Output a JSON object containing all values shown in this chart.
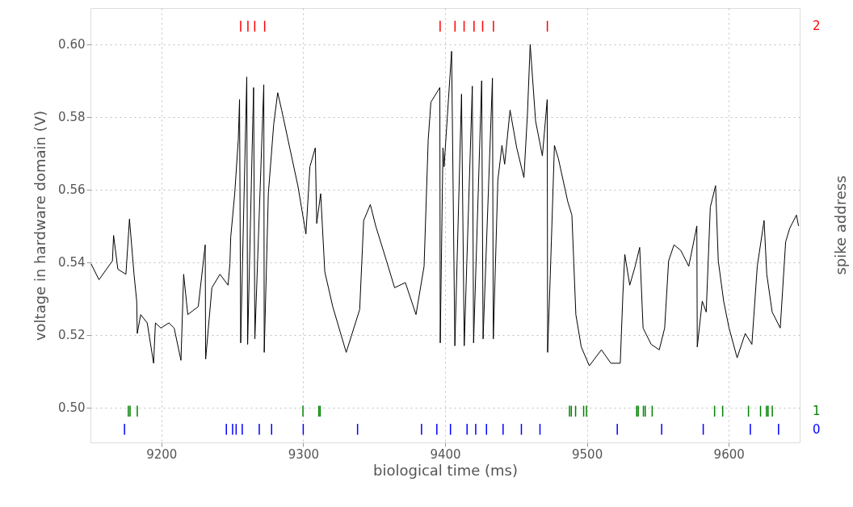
{
  "chart_data": {
    "type": "line",
    "xlabel": "biological time (ms)",
    "ylabel": "voltage in hardware domain (V)",
    "y2label": "spike address",
    "xlim": [
      9150,
      9650
    ],
    "xticks": [
      9200,
      9300,
      9400,
      9500,
      9600
    ],
    "ylim": [
      0.4904,
      0.61
    ],
    "yticks": [
      {
        "value": 0.5,
        "label": "0.50"
      },
      {
        "value": 0.52,
        "label": "0.52"
      },
      {
        "value": 0.54,
        "label": "0.54"
      },
      {
        "value": 0.56,
        "label": "0.56"
      },
      {
        "value": 0.58,
        "label": "0.58"
      },
      {
        "value": 0.6,
        "label": "0.60"
      }
    ],
    "annotations": [
      "0",
      "1",
      "2"
    ],
    "grid": true,
    "series": [
      {
        "color": "#000000",
        "x": [
          9150.4,
          9156,
          9165.5,
          9166.3,
          9169.3,
          9175,
          9177.5,
          9180.7,
          9182.6,
          9183,
          9185.4,
          9190,
          9194.5,
          9195.8,
          9199.6,
          9205.3,
          9209,
          9213.8,
          9215.7,
          9218.6,
          9226,
          9230.9,
          9231.2,
          9235.6,
          9241.3,
          9247,
          9248.3,
          9248.9,
          9251.7,
          9254.2,
          9255.1,
          9255.9,
          9260.2,
          9260.8,
          9265,
          9265.9,
          9272.2,
          9272.5,
          9275.4,
          9279.2,
          9282,
          9284.8,
          9290.5,
          9296.2,
          9301.9,
          9304.7,
          9308.5,
          9309.5,
          9312.3,
          9315.2,
          9320.8,
          9330.3,
          9339.8,
          9342.6,
          9347.3,
          9351.1,
          9358.7,
          9364.4,
          9372,
          9379.5,
          9385.2,
          9388.1,
          9390,
          9396.3,
          9396.6,
          9398.5,
          9399.3,
          9404.6,
          9406.9,
          9411.6,
          9413.5,
          9419.2,
          9420.1,
          9425.8,
          9426.8,
          9433.4,
          9434,
          9437.2,
          9440.1,
          9442,
          9445.8,
          9450.5,
          9455.6,
          9458.1,
          9460,
          9463.8,
          9468.6,
          9472,
          9472.3,
          9474.2,
          9477.1,
          9479.9,
          9486.5,
          9489.4,
          9492.2,
          9496,
          9501.7,
          9510.2,
          9516.9,
          9523.5,
          9525.4,
          9526.7,
          9530.2,
          9534,
          9537.2,
          9539.6,
          9545.3,
          9551,
          9554.8,
          9557.6,
          9561.4,
          9566.1,
          9571.8,
          9577.5,
          9577.8,
          9581.3,
          9584.1,
          9587,
          9590.7,
          9592.6,
          9596.4,
          9600.2,
          9605.9,
          9611.6,
          9616.3,
          9620.1,
          9624.9,
          9626.8,
          9630.6,
          9636.3,
          9640.1,
          9642.9,
          9647.7,
          9649.2
        ],
        "values": [
          0.5396,
          0.5352,
          0.5404,
          0.5474,
          0.5381,
          0.5367,
          0.5519,
          0.5367,
          0.5293,
          0.5204,
          0.5256,
          0.5233,
          0.5122,
          0.5233,
          0.5219,
          0.5233,
          0.5219,
          0.513,
          0.5367,
          0.5256,
          0.5278,
          0.5448,
          0.5133,
          0.533,
          0.5367,
          0.5337,
          0.5396,
          0.547,
          0.5589,
          0.5737,
          0.5848,
          0.5178,
          0.5911,
          0.5174,
          0.5881,
          0.5189,
          0.5889,
          0.5152,
          0.5589,
          0.5781,
          0.5867,
          0.5819,
          0.5715,
          0.5611,
          0.5478,
          0.5663,
          0.5715,
          0.5507,
          0.5589,
          0.5374,
          0.5278,
          0.5152,
          0.527,
          0.5515,
          0.5559,
          0.55,
          0.5404,
          0.533,
          0.5344,
          0.5256,
          0.5389,
          0.5737,
          0.5841,
          0.5881,
          0.5178,
          0.5715,
          0.5663,
          0.5981,
          0.517,
          0.5863,
          0.517,
          0.5885,
          0.5178,
          0.59,
          0.5189,
          0.5907,
          0.5189,
          0.5626,
          0.5722,
          0.567,
          0.5819,
          0.5715,
          0.5633,
          0.5811,
          0.6,
          0.5789,
          0.5693,
          0.5848,
          0.5152,
          0.5367,
          0.5722,
          0.5685,
          0.5567,
          0.553,
          0.5256,
          0.5167,
          0.5115,
          0.5159,
          0.5122,
          0.5122,
          0.5315,
          0.5422,
          0.5337,
          0.5389,
          0.5441,
          0.5219,
          0.5174,
          0.5159,
          0.5219,
          0.5404,
          0.5448,
          0.5433,
          0.5389,
          0.55,
          0.5167,
          0.5293,
          0.5263,
          0.5552,
          0.5611,
          0.5404,
          0.5293,
          0.5219,
          0.5137,
          0.5204,
          0.5174,
          0.5389,
          0.5515,
          0.5367,
          0.5263,
          0.5219,
          0.5456,
          0.5493,
          0.553,
          0.55
        ]
      },
      {
        "type": "scatter",
        "color": "#0000ff",
        "x": [
          9174,
          9245.8,
          9250.2,
          9252.7,
          9257,
          9269,
          9277.7,
          9300,
          9338.3,
          9383.4,
          9394.2,
          9403.8,
          9415.5,
          9421.6,
          9429.2,
          9440.9,
          9453.8,
          9466.9,
          9521.4,
          9552.7,
          9582,
          9615.2,
          9635.1
        ],
        "values": [
          0.494,
          0.494,
          0.494,
          0.494,
          0.494,
          0.494,
          0.494,
          0.494,
          0.494,
          0.494,
          0.494,
          0.494,
          0.494,
          0.494,
          0.494,
          0.494,
          0.494,
          0.494,
          0.494,
          0.494,
          0.494,
          0.494,
          0.494
        ]
      },
      {
        "type": "scatter",
        "color": "#008000",
        "x": [
          9176.7,
          9177.9,
          9183,
          9299.8,
          9311,
          9311.9,
          9487.7,
          9489,
          9492,
          9497.7,
          9499.7,
          9535.1,
          9536.2,
          9539.8,
          9541.1,
          9546,
          9590,
          9595.7,
          9613.9,
          9622.4,
          9626.6,
          9627.7,
          9630.7
        ],
        "values": [
          0.499,
          0.499,
          0.499,
          0.499,
          0.499,
          0.499,
          0.499,
          0.499,
          0.499,
          0.499,
          0.499,
          0.499,
          0.499,
          0.499,
          0.499,
          0.499,
          0.499,
          0.499,
          0.499,
          0.499,
          0.499,
          0.499,
          0.499
        ]
      },
      {
        "type": "scatter",
        "color": "#ff0000",
        "x": [
          9255.9,
          9261,
          9265.8,
          9272.8,
          9396.5,
          9407,
          9413.4,
          9420.4,
          9426.5,
          9434.1,
          9472.1
        ],
        "values": [
          0.605,
          0.605,
          0.605,
          0.605,
          0.605,
          0.605,
          0.605,
          0.605,
          0.605,
          0.605,
          0.605
        ]
      }
    ]
  }
}
